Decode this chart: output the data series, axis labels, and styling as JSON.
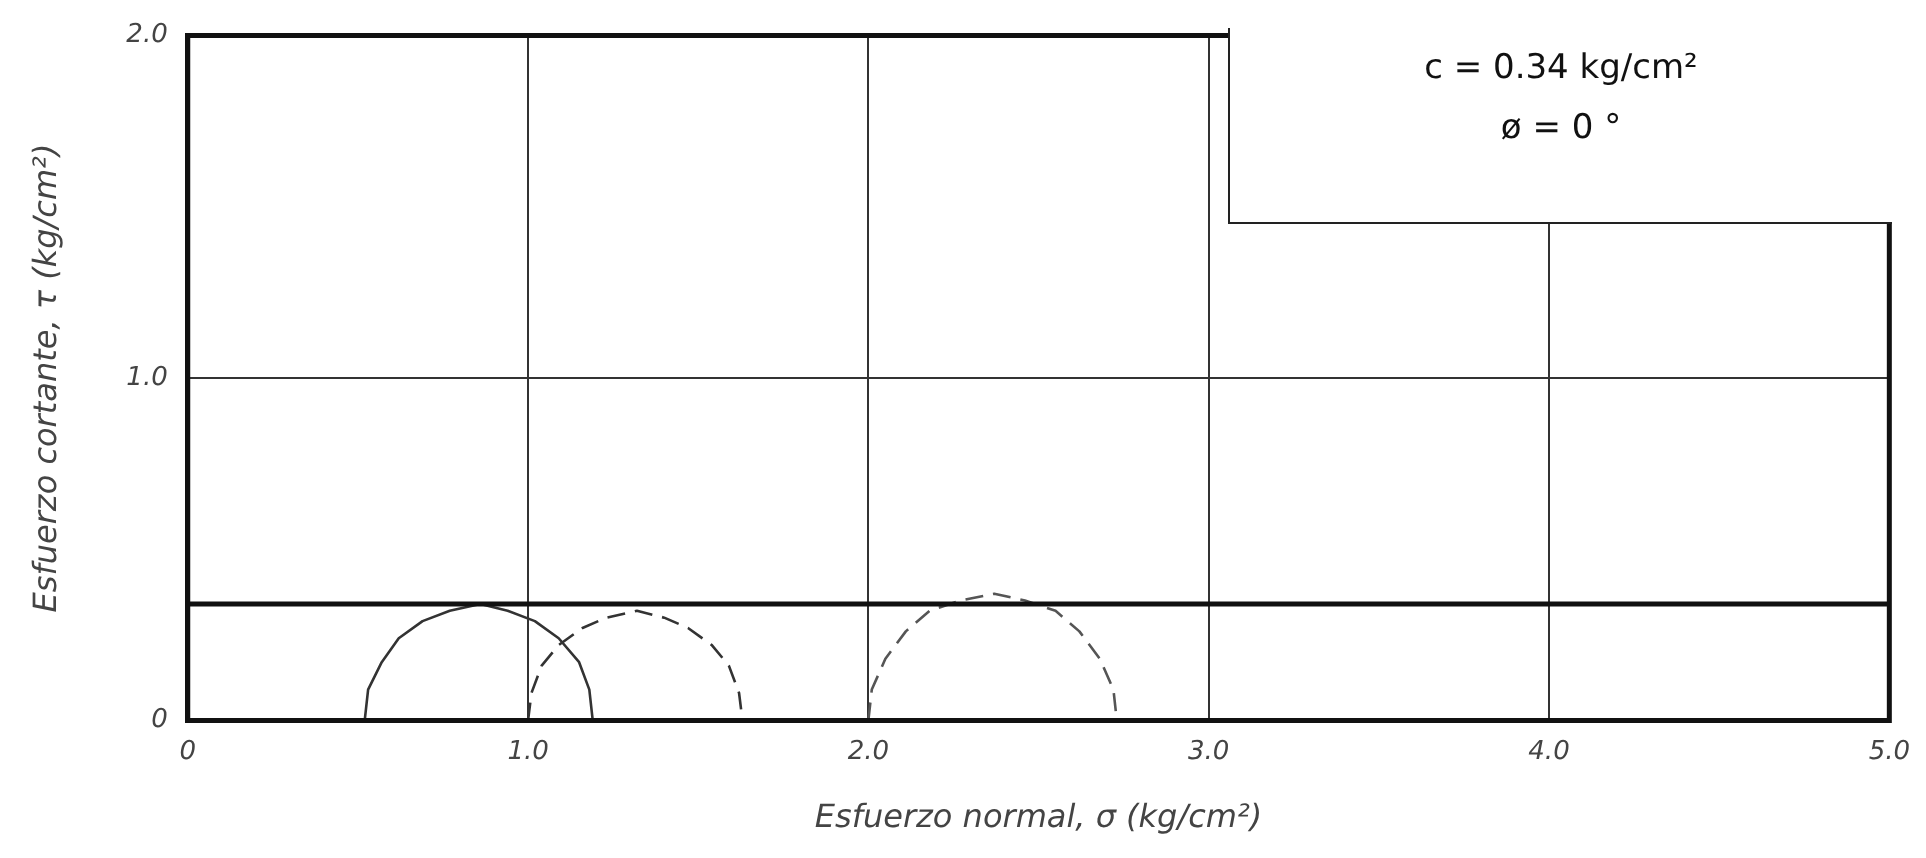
{
  "chart_data": {
    "type": "line",
    "xlabel": "Esfuerzo normal, σ (kg/cm²)",
    "ylabel": "Esfuerzo cortante, τ (kg/cm²)",
    "xlim": [
      0,
      5
    ],
    "ylim": [
      0,
      2
    ],
    "xticks": [
      0,
      {
        "value": 1,
        "label": "1.0"
      },
      {
        "value": 2,
        "label": "2.0"
      },
      {
        "value": 3,
        "label": "3.0"
      },
      {
        "value": 4,
        "label": "4.0"
      },
      {
        "value": 5,
        "label": "5.0"
      }
    ],
    "yticks": [
      0,
      {
        "value": 1,
        "label": "1.0"
      },
      {
        "value": 2,
        "label": "2.0"
      }
    ],
    "grid": true,
    "legend": false,
    "marker": "none",
    "annotations": [
      "c =  0.34  kg/cm²",
      "ø  =  0  °"
    ],
    "ref_lines": [
      {
        "axis": "y",
        "value": 0.34,
        "color": "#111111"
      }
    ],
    "series": [
      {
        "color": "#333333",
        "line_style": "solid",
        "x": [
          0.52,
          0.53,
          0.57,
          0.62,
          0.69,
          0.77,
          0.86,
          0.94,
          1.02,
          1.09,
          1.15,
          1.18,
          1.19
        ],
        "values": [
          0,
          0.09,
          0.17,
          0.24,
          0.29,
          0.32,
          0.34,
          0.32,
          0.29,
          0.24,
          0.17,
          0.09,
          0
        ]
      },
      {
        "color": "#333333",
        "line_style": "dashed",
        "x": [
          1.0,
          1.01,
          1.04,
          1.09,
          1.16,
          1.23,
          1.32,
          1.4,
          1.47,
          1.54,
          1.59,
          1.62,
          1.63
        ],
        "values": [
          0,
          0.08,
          0.16,
          0.22,
          0.27,
          0.3,
          0.32,
          0.3,
          0.27,
          0.22,
          0.16,
          0.08,
          0
        ]
      },
      {
        "color": "#555555",
        "line_style": "dashed",
        "x": [
          2.0,
          2.01,
          2.05,
          2.11,
          2.18,
          2.27,
          2.37,
          2.46,
          2.55,
          2.62,
          2.68,
          2.72,
          2.73
        ],
        "values": [
          0,
          0.09,
          0.18,
          0.26,
          0.32,
          0.35,
          0.37,
          0.35,
          0.32,
          0.26,
          0.18,
          0.09,
          0
        ]
      }
    ]
  }
}
